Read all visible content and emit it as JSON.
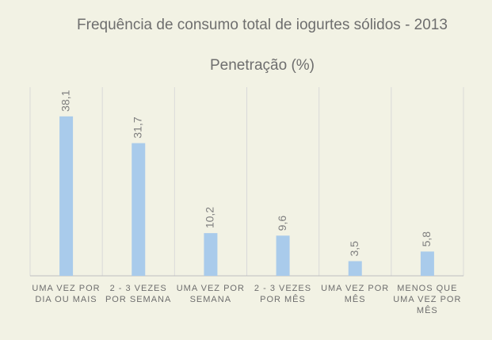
{
  "chart_data": {
    "type": "bar",
    "title": "Frequência de consumo total de iogurtes sólidos - 2013",
    "subtitle": "Penetração (%)",
    "categories": [
      "UMA VEZ POR DIA OU MAIS",
      "2 - 3 VEZES POR SEMANA",
      "UMA VEZ POR SEMANA",
      "2 - 3 VEZES POR MÊS",
      "UMA VEZ POR MÊS",
      "MENOS QUE UMA VEZ POR MÊS"
    ],
    "values": [
      38.1,
      31.7,
      10.2,
      9.6,
      3.5,
      5.8
    ],
    "value_labels": [
      "38,1",
      "31,7",
      "10,2",
      "9,6",
      "3,5",
      "5,8"
    ],
    "color": "#a9cbeb"
  }
}
